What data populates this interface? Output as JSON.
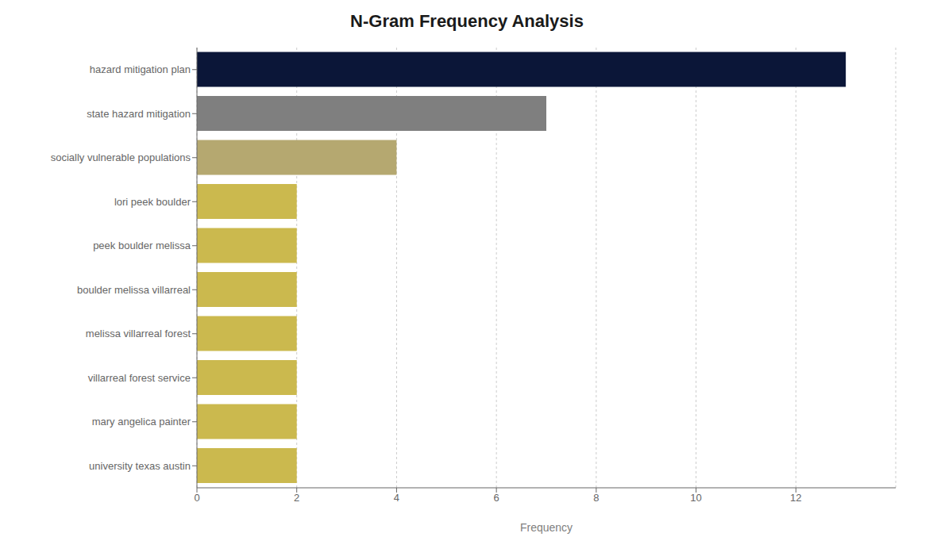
{
  "chart_data": {
    "type": "bar",
    "title": "N-Gram Frequency Analysis",
    "categories": [
      "university texas austin",
      "mary angelica painter",
      "villarreal forest service",
      "melissa villarreal forest",
      "boulder melissa villarreal",
      "peek boulder melissa",
      "lori peek boulder",
      "socially vulnerable populations",
      "state hazard mitigation",
      "hazard mitigation plan"
    ],
    "values": [
      2,
      2,
      2,
      2,
      2,
      2,
      2,
      4,
      7,
      13
    ],
    "colors": [
      "#cbb94e",
      "#cbb94e",
      "#cbb94e",
      "#cbb94e",
      "#cbb94e",
      "#cbb94e",
      "#cbb94e",
      "#b5a870",
      "#7f7f7f",
      "#0b1638"
    ],
    "xlabel": "Frequency",
    "xlim": [
      0,
      14
    ],
    "xticks": [
      0,
      2,
      4,
      6,
      8,
      10,
      12
    ],
    "grid": true,
    "orientation": "horizontal"
  }
}
